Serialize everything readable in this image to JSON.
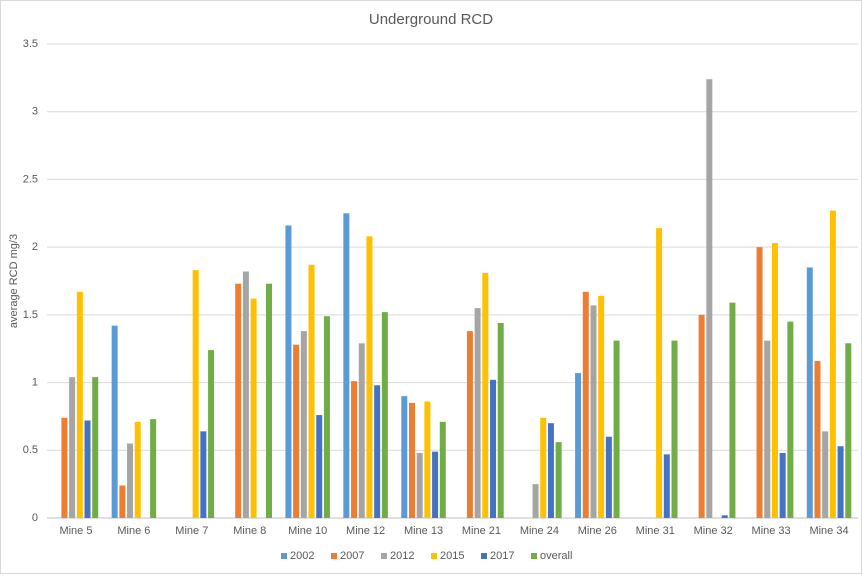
{
  "chart_data": {
    "type": "bar",
    "title": "Underground RCD",
    "y_label": "average RCD mg/3",
    "categories": [
      "Mine 5",
      "Mine 6",
      "Mine 7",
      "Mine 8",
      "Mine 10",
      "Mine 12",
      "Mine 13",
      "Mine 21",
      "Mine 24",
      "Mine 26",
      "Mine 31",
      "Mine 32",
      "Mine 33",
      "Mine 34"
    ],
    "series": [
      {
        "name": "2002",
        "color": "#5b9bd5",
        "values": [
          null,
          1.42,
          null,
          null,
          2.16,
          2.25,
          0.9,
          null,
          null,
          1.07,
          null,
          null,
          null,
          1.85
        ]
      },
      {
        "name": "2007",
        "color": "#ed7d31",
        "values": [
          0.74,
          0.24,
          null,
          1.73,
          1.28,
          1.01,
          0.85,
          1.38,
          null,
          1.67,
          null,
          1.5,
          2.0,
          1.16
        ]
      },
      {
        "name": "2012",
        "color": "#a5a5a5",
        "values": [
          1.04,
          0.55,
          null,
          1.82,
          1.38,
          1.29,
          0.48,
          1.55,
          0.25,
          1.57,
          null,
          3.24,
          1.31,
          0.64
        ]
      },
      {
        "name": "2015",
        "color": "#ffc000",
        "values": [
          1.67,
          0.71,
          1.83,
          1.62,
          1.87,
          2.08,
          0.86,
          1.81,
          0.74,
          1.64,
          2.14,
          null,
          2.03,
          2.27
        ]
      },
      {
        "name": "2017",
        "color": "#4472c4",
        "values": [
          0.72,
          null,
          0.64,
          null,
          0.76,
          0.98,
          0.49,
          1.02,
          0.7,
          0.6,
          0.47,
          0.02,
          0.48,
          0.53
        ]
      },
      {
        "name": "overall",
        "color": "#70ad47",
        "values": [
          1.04,
          0.73,
          1.24,
          1.73,
          1.49,
          1.52,
          0.71,
          1.44,
          0.56,
          1.31,
          1.31,
          1.59,
          1.45,
          1.29
        ]
      }
    ],
    "ylim": [
      0,
      3.5
    ],
    "yticks": [
      0,
      0.5,
      1,
      1.5,
      2,
      2.5,
      3,
      3.5
    ],
    "grid": true,
    "legend": "bottom"
  }
}
